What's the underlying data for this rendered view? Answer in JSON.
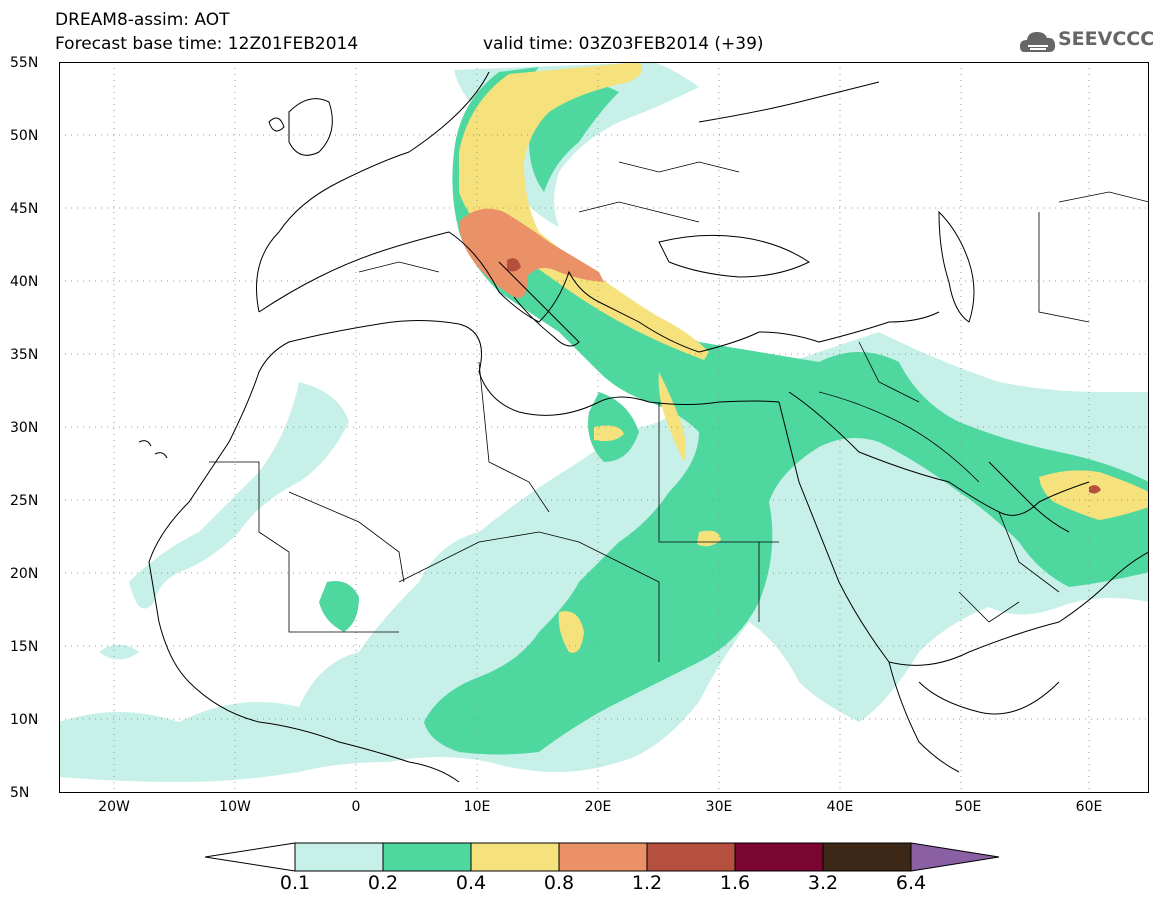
{
  "header": {
    "line1": "DREAM8-assim: AOT",
    "line2": "Forecast base time: 12Z01FEB2014",
    "valid": "valid time: 03Z03FEB2014 (+39)"
  },
  "logo": {
    "text": "SEEVCCC",
    "icon": "cloud-icon"
  },
  "axes": {
    "lat_labels": [
      "55N",
      "50N",
      "45N",
      "40N",
      "35N",
      "30N",
      "25N",
      "20N",
      "15N",
      "10N",
      "5N"
    ],
    "lon_labels": [
      "20W",
      "10W",
      "0",
      "10E",
      "20E",
      "30E",
      "40E",
      "50E",
      "60E"
    ]
  },
  "colorbar": {
    "labels": [
      "0.1",
      "0.2",
      "0.4",
      "0.8",
      "1.2",
      "1.6",
      "3.2",
      "6.4"
    ],
    "colors": [
      "#ffffff",
      "#c6f0e8",
      "#4fd7a0",
      "#f6e27d",
      "#eb9168",
      "#b5503e",
      "#7a0530",
      "#3d2818",
      "#8a5fa3"
    ]
  },
  "palette": {
    "c1": "#c6f0e8",
    "c2": "#4fd7a0",
    "c3": "#f6e27d",
    "c4": "#eb9168",
    "c5": "#b5503e"
  }
}
